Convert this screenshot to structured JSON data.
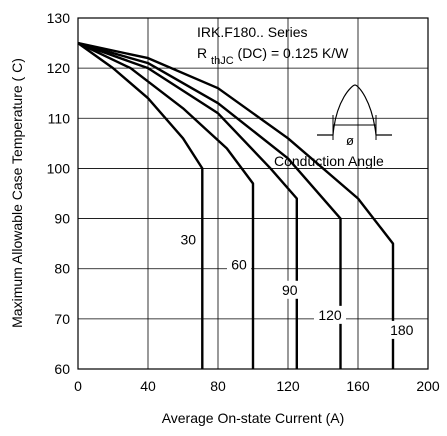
{
  "chart_data": {
    "type": "line",
    "title": "IRK.F180.. Series",
    "subtitle_r": "R",
    "subtitle_sub": "thJC",
    "subtitle_rest": " (DC) = 0.125 K/W",
    "xlabel": "Average On-state Current (A)",
    "ylabel": "Maximum Allowable Case Temperature ( C)",
    "xlim": [
      0,
      200
    ],
    "ylim": [
      60,
      130
    ],
    "xticks": [
      "0",
      "40",
      "80",
      "120",
      "160",
      "200"
    ],
    "yticks": [
      "60",
      "70",
      "80",
      "90",
      "100",
      "110",
      "120",
      "130"
    ],
    "grid": true,
    "inset_label": "Conduction Angle",
    "inset_symbol": "ø",
    "series": [
      {
        "name": "30",
        "label_pos": [
          63,
          85
        ],
        "points": [
          [
            0,
            125
          ],
          [
            20,
            120
          ],
          [
            40,
            114
          ],
          [
            60,
            106
          ],
          [
            71,
            100
          ],
          [
            71,
            60
          ]
        ]
      },
      {
        "name": "60",
        "label_pos": [
          92,
          80
        ],
        "points": [
          [
            0,
            125
          ],
          [
            30,
            120
          ],
          [
            60,
            112
          ],
          [
            85,
            104
          ],
          [
            100,
            97
          ],
          [
            100,
            60
          ]
        ]
      },
      {
        "name": "90",
        "label_pos": [
          121,
          75
        ],
        "points": [
          [
            0,
            125
          ],
          [
            40,
            120
          ],
          [
            80,
            111
          ],
          [
            110,
            100
          ],
          [
            125,
            94
          ],
          [
            125,
            60
          ]
        ]
      },
      {
        "name": "120",
        "label_pos": [
          144,
          70
        ],
        "points": [
          [
            0,
            125
          ],
          [
            40,
            121
          ],
          [
            80,
            113
          ],
          [
            120,
            102
          ],
          [
            150,
            90
          ],
          [
            150,
            60
          ]
        ]
      },
      {
        "name": "180",
        "label_pos": [
          185,
          67
        ],
        "points": [
          [
            0,
            125
          ],
          [
            40,
            122
          ],
          [
            80,
            116
          ],
          [
            120,
            106
          ],
          [
            160,
            94
          ],
          [
            180,
            85
          ],
          [
            180,
            60
          ]
        ]
      }
    ]
  }
}
